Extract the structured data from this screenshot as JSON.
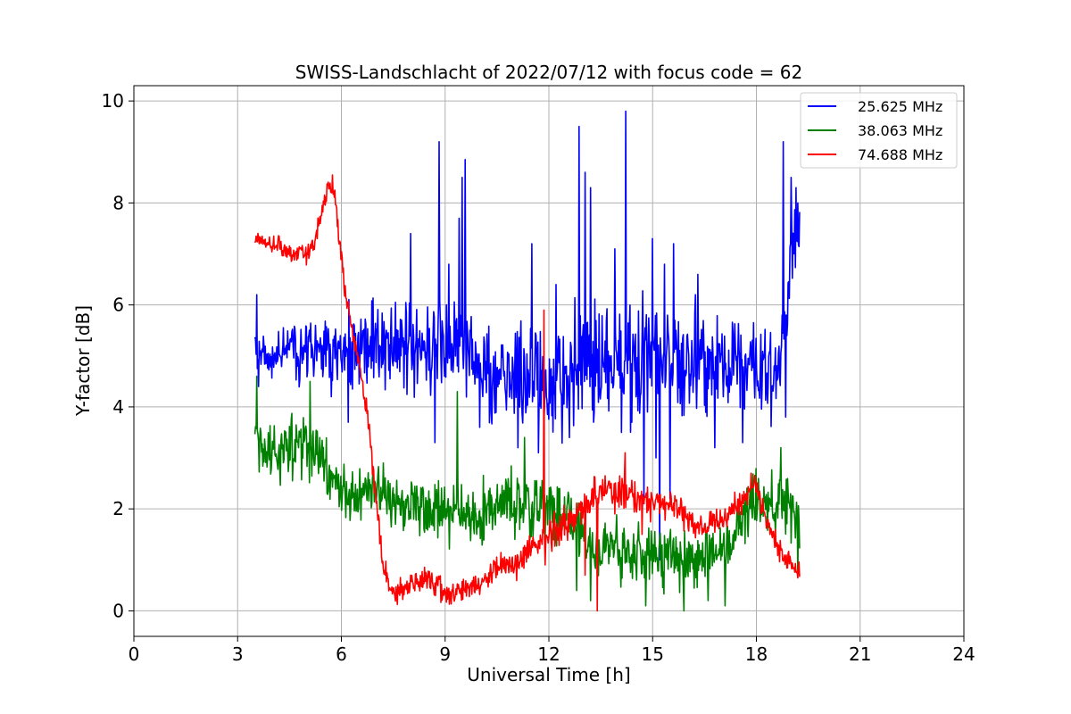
{
  "chart_data": {
    "type": "line",
    "title": "SWISS-Landschlacht of 2022/07/12 with focus code = 62",
    "xlabel": "Universal Time [h]",
    "ylabel": "Y-factor [dB]",
    "xlim": [
      0,
      24
    ],
    "ylim": [
      -0.5,
      10.3
    ],
    "xticks": [
      0,
      3,
      6,
      9,
      12,
      15,
      18,
      21,
      24
    ],
    "yticks": [
      0,
      2,
      4,
      6,
      8,
      10
    ],
    "grid": true,
    "legend_position": "top-right",
    "series": [
      {
        "name": "25.625 MHz",
        "label": "25.625 MHz",
        "color": "#0000ff",
        "baseline": [
          [
            3.5,
            5.0
          ],
          [
            5.0,
            5.1
          ],
          [
            6.0,
            5.1
          ],
          [
            7.0,
            5.2
          ],
          [
            8.0,
            5.2
          ],
          [
            9.0,
            5.2
          ],
          [
            9.5,
            5.5
          ],
          [
            10.0,
            4.7
          ],
          [
            11.0,
            4.6
          ],
          [
            12.0,
            4.6
          ],
          [
            13.0,
            4.8
          ],
          [
            14.0,
            4.9
          ],
          [
            15.0,
            5.0
          ],
          [
            16.0,
            4.9
          ],
          [
            17.0,
            4.8
          ],
          [
            18.0,
            4.7
          ],
          [
            18.6,
            4.6
          ],
          [
            18.8,
            5.5
          ],
          [
            19.0,
            7.0
          ],
          [
            19.25,
            7.5
          ]
        ],
        "spread": [
          [
            3.5,
            0.6
          ],
          [
            5.0,
            0.9
          ],
          [
            7.0,
            1.3
          ],
          [
            9.0,
            1.5
          ],
          [
            10.0,
            1.3
          ],
          [
            12.0,
            1.6
          ],
          [
            13.0,
            1.7
          ],
          [
            15.0,
            1.6
          ],
          [
            17.0,
            1.4
          ],
          [
            18.6,
            1.2
          ],
          [
            19.0,
            1.0
          ],
          [
            19.25,
            0.8
          ]
        ],
        "spikes": [
          [
            3.55,
            6.2
          ],
          [
            3.6,
            4.4
          ],
          [
            5.2,
            4.6
          ],
          [
            5.7,
            4.2
          ],
          [
            6.2,
            3.7
          ],
          [
            8.0,
            7.4
          ],
          [
            8.7,
            3.3
          ],
          [
            8.83,
            9.2
          ],
          [
            9.1,
            6.8
          ],
          [
            9.4,
            7.7
          ],
          [
            9.5,
            8.5
          ],
          [
            9.58,
            8.85
          ],
          [
            10.0,
            3.6
          ],
          [
            11.1,
            3.2
          ],
          [
            11.5,
            7.2
          ],
          [
            11.7,
            3.1
          ],
          [
            12.2,
            6.4
          ],
          [
            12.6,
            3.4
          ],
          [
            12.88,
            9.5
          ],
          [
            13.05,
            8.6
          ],
          [
            13.2,
            8.3
          ],
          [
            13.3,
            3.7
          ],
          [
            13.9,
            7.1
          ],
          [
            14.1,
            3.5
          ],
          [
            14.22,
            9.8
          ],
          [
            14.4,
            3.7
          ],
          [
            14.75,
            2.1
          ],
          [
            15.0,
            7.3
          ],
          [
            15.1,
            3.0
          ],
          [
            15.2,
            1.0
          ],
          [
            15.35,
            6.8
          ],
          [
            15.5,
            2.2
          ],
          [
            15.6,
            7.2
          ],
          [
            16.3,
            6.6
          ],
          [
            16.8,
            3.2
          ],
          [
            17.6,
            3.3
          ],
          [
            18.78,
            9.2
          ],
          [
            18.85,
            3.8
          ],
          [
            19.0,
            8.5
          ],
          [
            19.15,
            8.3
          ],
          [
            19.2,
            8.0
          ]
        ]
      },
      {
        "name": "38.063 MHz",
        "label": "38.063 MHz",
        "color": "#008000",
        "baseline": [
          [
            3.5,
            3.3
          ],
          [
            4.0,
            3.1
          ],
          [
            4.5,
            3.2
          ],
          [
            5.0,
            3.3
          ],
          [
            5.5,
            2.9
          ],
          [
            6.0,
            2.3
          ],
          [
            6.5,
            2.3
          ],
          [
            7.0,
            2.4
          ],
          [
            7.5,
            2.1
          ],
          [
            8.0,
            2.1
          ],
          [
            8.5,
            2.0
          ],
          [
            9.0,
            1.9
          ],
          [
            9.5,
            1.9
          ],
          [
            10.0,
            1.9
          ],
          [
            10.5,
            2.0
          ],
          [
            11.0,
            2.1
          ],
          [
            12.0,
            2.0
          ],
          [
            12.5,
            1.9
          ],
          [
            13.0,
            1.4
          ],
          [
            13.5,
            1.3
          ],
          [
            14.0,
            1.2
          ],
          [
            15.0,
            1.1
          ],
          [
            16.0,
            1.0
          ],
          [
            17.0,
            1.1
          ],
          [
            17.6,
            1.8
          ],
          [
            18.0,
            2.2
          ],
          [
            18.5,
            2.1
          ],
          [
            19.25,
            1.8
          ]
        ],
        "spread": [
          [
            3.5,
            0.9
          ],
          [
            5.0,
            0.9
          ],
          [
            6.0,
            0.8
          ],
          [
            9.0,
            0.8
          ],
          [
            12.0,
            0.9
          ],
          [
            15.0,
            0.9
          ],
          [
            17.5,
            0.9
          ],
          [
            19.25,
            0.9
          ]
        ],
        "spikes": [
          [
            3.55,
            4.6
          ],
          [
            5.1,
            4.5
          ],
          [
            9.35,
            4.3
          ],
          [
            11.3,
            3.4
          ],
          [
            12.8,
            0.4
          ],
          [
            13.2,
            0.2
          ],
          [
            14.8,
            0.1
          ],
          [
            15.9,
            0.0
          ],
          [
            16.6,
            0.2
          ],
          [
            17.1,
            0.1
          ],
          [
            18.7,
            3.2
          ],
          [
            19.2,
            0.7
          ]
        ]
      },
      {
        "name": "74.688 MHz",
        "label": "74.688 MHz",
        "color": "#ff0000",
        "baseline": [
          [
            3.5,
            7.3
          ],
          [
            4.0,
            7.2
          ],
          [
            4.5,
            7.05
          ],
          [
            5.0,
            7.0
          ],
          [
            5.2,
            7.2
          ],
          [
            5.4,
            7.7
          ],
          [
            5.6,
            8.3
          ],
          [
            5.8,
            8.2
          ],
          [
            5.9,
            7.6
          ],
          [
            6.1,
            6.3
          ],
          [
            6.4,
            5.2
          ],
          [
            6.6,
            4.5
          ],
          [
            6.8,
            3.6
          ],
          [
            7.0,
            2.2
          ],
          [
            7.2,
            1.0
          ],
          [
            7.4,
            0.4
          ],
          [
            7.7,
            0.4
          ],
          [
            8.0,
            0.5
          ],
          [
            8.5,
            0.6
          ],
          [
            9.0,
            0.4
          ],
          [
            9.5,
            0.4
          ],
          [
            10.0,
            0.55
          ],
          [
            10.5,
            0.9
          ],
          [
            11.0,
            0.9
          ],
          [
            11.5,
            1.2
          ],
          [
            12.0,
            1.5
          ],
          [
            12.5,
            1.7
          ],
          [
            13.0,
            2.0
          ],
          [
            13.5,
            2.3
          ],
          [
            14.0,
            2.4
          ],
          [
            14.5,
            2.2
          ],
          [
            15.0,
            2.1
          ],
          [
            15.5,
            2.1
          ],
          [
            16.0,
            1.8
          ],
          [
            16.5,
            1.65
          ],
          [
            17.0,
            1.8
          ],
          [
            17.5,
            2.1
          ],
          [
            18.0,
            2.4
          ],
          [
            18.3,
            1.8
          ],
          [
            18.6,
            1.3
          ],
          [
            19.0,
            0.9
          ],
          [
            19.25,
            0.85
          ]
        ],
        "spread": [
          [
            3.5,
            0.25
          ],
          [
            5.0,
            0.25
          ],
          [
            6.0,
            0.3
          ],
          [
            7.5,
            0.35
          ],
          [
            10.0,
            0.4
          ],
          [
            12.0,
            0.5
          ],
          [
            14.0,
            0.55
          ],
          [
            16.0,
            0.35
          ],
          [
            18.0,
            0.35
          ],
          [
            19.25,
            0.35
          ]
        ],
        "spikes": [
          [
            5.75,
            8.55
          ],
          [
            11.85,
            5.9
          ],
          [
            11.9,
            0.9
          ],
          [
            13.05,
            0.7
          ],
          [
            13.4,
            0.0
          ],
          [
            14.2,
            3.1
          ],
          [
            14.7,
            1.5
          ],
          [
            17.85,
            2.7
          ]
        ]
      }
    ]
  }
}
